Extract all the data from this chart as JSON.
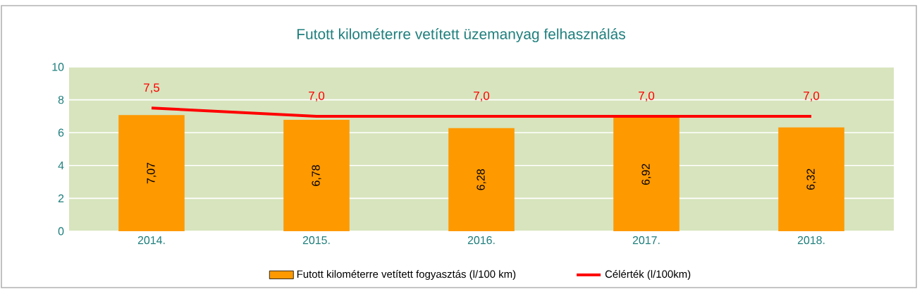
{
  "chart_data": {
    "type": "bar",
    "title": "Futott kilométerre vetített üzemanyag felhasználás",
    "categories": [
      "2014.",
      "2015.",
      "2016.",
      "2017.",
      "2018."
    ],
    "series": [
      {
        "name": "Futott kilométerre vetített fogyasztás (l/100 km)",
        "color": "#ff9900",
        "values": [
          7.07,
          6.78,
          6.28,
          6.92,
          6.32
        ],
        "value_labels": [
          "7,07",
          "6,78",
          "6,28",
          "6,92",
          "6,32"
        ]
      },
      {
        "name": "Célérték (l/100km)",
        "type": "line",
        "color": "#ff0000",
        "values": [
          7.5,
          7.0,
          7.0,
          7.0,
          7.0
        ],
        "value_labels": [
          "7,5",
          "7,0",
          "7,0",
          "7,0",
          "7,0"
        ]
      }
    ],
    "ylim": [
      0,
      10
    ],
    "yticks": [
      0,
      2,
      4,
      6,
      8,
      10
    ],
    "grid": "y",
    "legend": "bottom"
  }
}
